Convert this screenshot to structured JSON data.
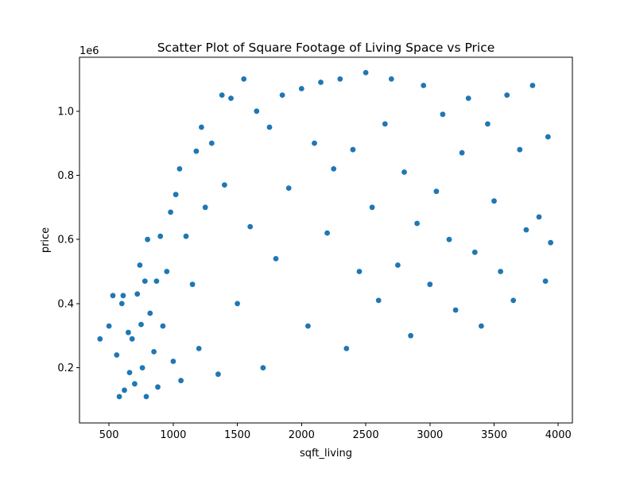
{
  "chart_data": {
    "type": "scatter",
    "title": "Scatter Plot of Square Footage of Living Space vs Price",
    "xlabel": "sqft_living",
    "ylabel": "price",
    "y_offset_label": "1e6",
    "xlim": [
      270,
      4110
    ],
    "ylim": [
      28000,
      1168000
    ],
    "x_ticks": [
      500,
      1000,
      1500,
      2000,
      2500,
      3000,
      3500,
      4000
    ],
    "x_tick_labels": [
      "500",
      "1000",
      "1500",
      "2000",
      "2500",
      "3000",
      "3500",
      "4000"
    ],
    "y_ticks": [
      200000,
      400000,
      600000,
      800000,
      1000000
    ],
    "y_tick_labels": [
      "0.2",
      "0.4",
      "0.6",
      "0.8",
      "1.0"
    ],
    "grid": false,
    "marker_color": "#1f77b4",
    "series": [
      {
        "points": [
          [
            430,
            290000
          ],
          [
            500,
            330000
          ],
          [
            530,
            425000
          ],
          [
            560,
            240000
          ],
          [
            580,
            110000
          ],
          [
            600,
            400000
          ],
          [
            610,
            425000
          ],
          [
            620,
            130000
          ],
          [
            650,
            310000
          ],
          [
            660,
            185000
          ],
          [
            680,
            290000
          ],
          [
            700,
            150000
          ],
          [
            720,
            430000
          ],
          [
            740,
            520000
          ],
          [
            750,
            335000
          ],
          [
            760,
            200000
          ],
          [
            780,
            470000
          ],
          [
            790,
            110000
          ],
          [
            800,
            600000
          ],
          [
            820,
            370000
          ],
          [
            850,
            250000
          ],
          [
            870,
            470000
          ],
          [
            880,
            140000
          ],
          [
            900,
            610000
          ],
          [
            920,
            330000
          ],
          [
            950,
            500000
          ],
          [
            980,
            685000
          ],
          [
            1000,
            220000
          ],
          [
            1020,
            740000
          ],
          [
            1050,
            820000
          ],
          [
            1060,
            160000
          ],
          [
            1100,
            610000
          ],
          [
            1150,
            460000
          ],
          [
            1180,
            875000
          ],
          [
            1200,
            260000
          ],
          [
            1220,
            950000
          ],
          [
            1250,
            700000
          ],
          [
            1300,
            900000
          ],
          [
            1350,
            180000
          ],
          [
            1380,
            1050000
          ],
          [
            1400,
            770000
          ],
          [
            1450,
            1040000
          ],
          [
            1500,
            400000
          ],
          [
            1550,
            1100000
          ],
          [
            1600,
            640000
          ],
          [
            1650,
            1000000
          ],
          [
            1700,
            200000
          ],
          [
            1750,
            950000
          ],
          [
            1800,
            540000
          ],
          [
            1850,
            1050000
          ],
          [
            1900,
            760000
          ],
          [
            2000,
            1070000
          ],
          [
            2050,
            330000
          ],
          [
            2100,
            900000
          ],
          [
            2150,
            1090000
          ],
          [
            2200,
            620000
          ],
          [
            2250,
            820000
          ],
          [
            2300,
            1100000
          ],
          [
            2350,
            260000
          ],
          [
            2400,
            880000
          ],
          [
            2450,
            500000
          ],
          [
            2500,
            1120000
          ],
          [
            2550,
            700000
          ],
          [
            2600,
            410000
          ],
          [
            2650,
            960000
          ],
          [
            2700,
            1100000
          ],
          [
            2750,
            520000
          ],
          [
            2800,
            810000
          ],
          [
            2850,
            300000
          ],
          [
            2900,
            650000
          ],
          [
            2950,
            1080000
          ],
          [
            3000,
            460000
          ],
          [
            3050,
            750000
          ],
          [
            3100,
            990000
          ],
          [
            3150,
            600000
          ],
          [
            3200,
            380000
          ],
          [
            3250,
            870000
          ],
          [
            3300,
            1040000
          ],
          [
            3350,
            560000
          ],
          [
            3400,
            330000
          ],
          [
            3450,
            960000
          ],
          [
            3500,
            720000
          ],
          [
            3550,
            500000
          ],
          [
            3600,
            1050000
          ],
          [
            3650,
            410000
          ],
          [
            3700,
            880000
          ],
          [
            3750,
            630000
          ],
          [
            3800,
            1080000
          ],
          [
            3850,
            670000
          ],
          [
            3900,
            470000
          ],
          [
            3920,
            920000
          ],
          [
            3940,
            590000
          ]
        ]
      }
    ]
  }
}
